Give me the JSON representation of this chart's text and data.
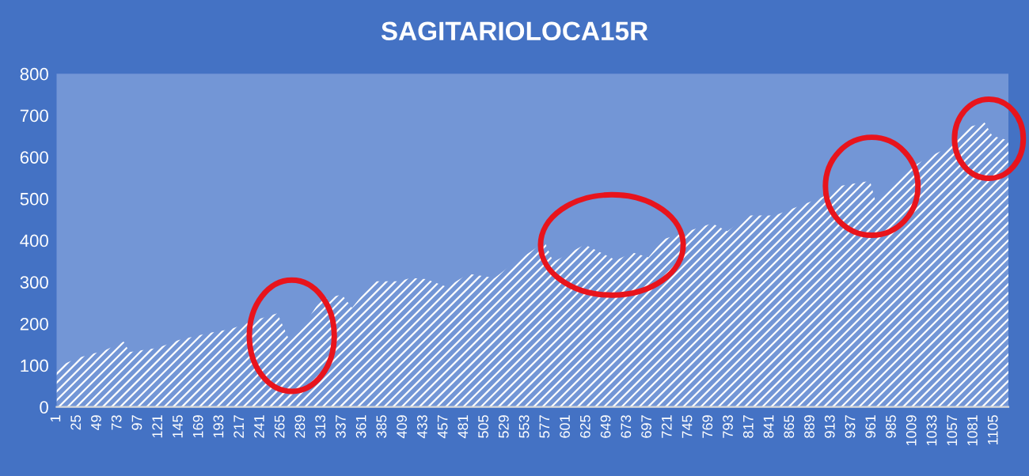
{
  "chart_data": {
    "type": "area",
    "title": "SAGITARIOLOCA15R",
    "x": [
      1,
      25,
      58,
      80,
      87,
      120,
      145,
      181,
      206,
      231,
      261,
      275,
      287,
      312,
      337,
      349,
      374,
      405,
      418,
      436,
      461,
      486,
      517,
      536,
      576,
      586,
      623,
      660,
      679,
      698,
      716,
      773,
      791,
      816,
      847,
      903,
      922,
      959,
      965,
      997,
      1028,
      1053,
      1072,
      1094,
      1103,
      1122
    ],
    "series": [
      {
        "color": "#ffffff",
        "values": [
          95,
          117,
          136,
          157,
          132,
          142,
          161,
          178,
          187,
          206,
          225,
          161,
          180,
          257,
          270,
          238,
          302,
          302,
          310,
          307,
          288,
          320,
          310,
          340,
          396,
          348,
          390,
          352,
          371,
          359,
          403,
          441,
          422,
          460,
          460,
          504,
          530,
          543,
          497,
          562,
          600,
          625,
          670,
          683,
          651,
          640
        ]
      }
    ],
    "xlim": [
      1,
      1122
    ],
    "xticks": [
      1,
      25,
      49,
      73,
      97,
      121,
      145,
      169,
      193,
      217,
      241,
      265,
      289,
      313,
      337,
      361,
      385,
      409,
      433,
      457,
      481,
      505,
      529,
      553,
      577,
      601,
      625,
      649,
      673,
      697,
      721,
      745,
      769,
      793,
      817,
      841,
      865,
      889,
      913,
      937,
      961,
      985,
      1009,
      1033,
      1057,
      1081,
      1105
    ],
    "ylim": [
      0,
      800
    ],
    "yticks": [
      0,
      100,
      200,
      300,
      400,
      500,
      600,
      700,
      800
    ],
    "grid": false,
    "legend": false
  }
}
